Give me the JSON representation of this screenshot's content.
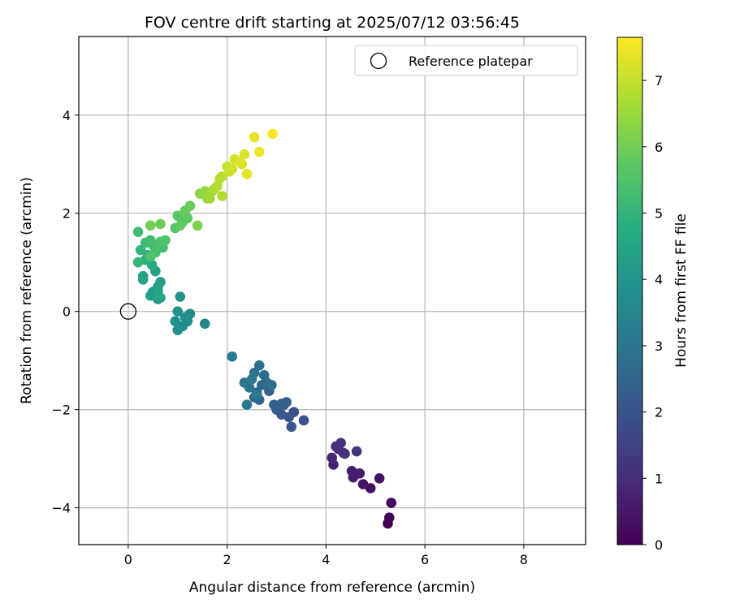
{
  "chart_data": {
    "type": "scatter",
    "title": "FOV centre drift starting at 2025/07/12 03:56:45",
    "xlabel": "Angular distance from reference (arcmin)",
    "ylabel": "Rotation from reference (arcmin)",
    "xlim": [
      -1.0,
      9.25
    ],
    "ylim": [
      -4.75,
      5.6
    ],
    "xticks": [
      0,
      2,
      4,
      6,
      8
    ],
    "yticks": [
      -4,
      -2,
      0,
      2,
      4
    ],
    "grid": true,
    "legend": {
      "position": "top-right",
      "entries": [
        "Reference platepar"
      ]
    },
    "reference_point": {
      "x": 0,
      "y": 0,
      "marker": "open-circle"
    },
    "colorbar": {
      "label": "Hours from first FF file",
      "range": [
        0,
        7.65
      ],
      "ticks": [
        0,
        1,
        2,
        3,
        4,
        5,
        6,
        7
      ],
      "colormap": "viridis"
    },
    "series": [
      {
        "marker": "filled-circle",
        "x": [
          5.25,
          5.28,
          5.32,
          4.9,
          5.08,
          4.75,
          4.55,
          4.68,
          4.52,
          4.15,
          4.12,
          4.35,
          4.25,
          4.2,
          4.3,
          4.38,
          4.62,
          3.55,
          3.35,
          3.25,
          3.3,
          3.1,
          3.05,
          3.15,
          3.2,
          3.0,
          2.95,
          3.1,
          2.85,
          2.65,
          2.55,
          2.6,
          2.7,
          2.75,
          2.8,
          2.9,
          2.65,
          2.55,
          2.35,
          2.45,
          2.5,
          2.4,
          2.6,
          2.1,
          1.55,
          1.25,
          1.2,
          1.1,
          1.0,
          0.95,
          1.05,
          1.15,
          1.0,
          0.6,
          0.65,
          0.55,
          0.6,
          0.5,
          0.45,
          0.65,
          0.3,
          0.3,
          0.55,
          0.6,
          0.62,
          0.48,
          0.4,
          0.35,
          0.25,
          0.2,
          0.35,
          0.45,
          0.5,
          0.55,
          0.7,
          0.65,
          0.45,
          0.75,
          0.95,
          1.0,
          1.1,
          1.2,
          1.05,
          1.15,
          1.25,
          0.65,
          0.45,
          0.2,
          1.4,
          1.45,
          1.55,
          1.6,
          1.65,
          1.7,
          1.75,
          1.9,
          1.8,
          1.85,
          1.9,
          2.0,
          2.05,
          2.1,
          2.15,
          2.3,
          2.35,
          2.25,
          2.4,
          2.55,
          2.65,
          2.92
        ],
        "y": [
          -4.32,
          -4.2,
          -3.9,
          -3.6,
          -3.4,
          -3.52,
          -3.38,
          -3.3,
          -3.25,
          -3.12,
          -2.98,
          -2.88,
          -2.8,
          -2.75,
          -2.68,
          -2.9,
          -2.85,
          -2.22,
          -2.05,
          -2.15,
          -2.35,
          -2.1,
          -1.95,
          -1.9,
          -1.85,
          -2.0,
          -1.9,
          -1.88,
          -1.62,
          -1.8,
          -1.75,
          -1.65,
          -1.5,
          -1.3,
          -1.45,
          -1.5,
          -1.1,
          -1.25,
          -1.45,
          -1.55,
          -1.38,
          -1.9,
          -1.7,
          -0.92,
          -0.25,
          -0.05,
          -0.2,
          -0.3,
          -0.38,
          -0.2,
          0.3,
          -0.12,
          0.0,
          0.25,
          0.28,
          0.35,
          0.5,
          0.4,
          0.32,
          0.6,
          0.72,
          0.65,
          0.82,
          0.42,
          0.3,
          0.95,
          1.15,
          1.05,
          1.25,
          1.0,
          1.4,
          1.45,
          1.35,
          1.2,
          1.3,
          1.42,
          1.12,
          1.45,
          1.7,
          1.95,
          1.82,
          1.9,
          1.75,
          2.05,
          2.15,
          1.78,
          1.75,
          1.62,
          1.75,
          2.4,
          2.45,
          2.3,
          2.3,
          2.45,
          2.5,
          2.35,
          2.55,
          2.7,
          2.75,
          2.95,
          2.85,
          2.9,
          3.1,
          3.0,
          3.2,
          3.05,
          2.8,
          3.55,
          3.25,
          3.62
        ],
        "c": [
          0.05,
          0.1,
          0.2,
          0.3,
          0.4,
          0.45,
          0.55,
          0.6,
          0.65,
          0.75,
          0.8,
          0.85,
          0.95,
          1.0,
          1.05,
          1.1,
          1.15,
          1.9,
          1.95,
          2.0,
          2.05,
          2.1,
          2.15,
          2.2,
          2.25,
          2.3,
          2.35,
          2.4,
          2.45,
          2.5,
          2.55,
          2.6,
          2.65,
          2.7,
          2.75,
          2.8,
          2.85,
          2.9,
          2.95,
          3.0,
          3.05,
          3.1,
          3.15,
          3.2,
          3.55,
          3.6,
          3.65,
          3.7,
          3.75,
          3.8,
          3.85,
          3.9,
          3.95,
          4.0,
          4.05,
          4.1,
          4.15,
          4.2,
          4.25,
          4.3,
          4.35,
          4.4,
          4.45,
          4.5,
          4.55,
          4.75,
          4.85,
          4.9,
          5.0,
          5.1,
          5.2,
          5.25,
          5.3,
          5.35,
          5.4,
          5.45,
          5.5,
          5.55,
          5.6,
          5.65,
          5.7,
          5.75,
          5.8,
          5.85,
          5.9,
          5.95,
          6.0,
          5.3,
          6.15,
          6.3,
          6.4,
          6.5,
          6.55,
          6.6,
          6.7,
          6.75,
          6.8,
          6.85,
          6.9,
          7.0,
          7.05,
          7.1,
          7.15,
          7.2,
          7.25,
          7.3,
          7.35,
          7.4,
          7.5,
          7.6
        ]
      }
    ]
  }
}
